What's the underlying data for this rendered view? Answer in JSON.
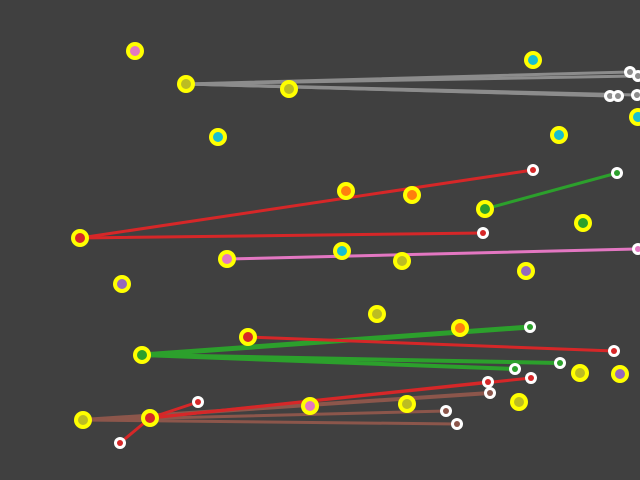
{
  "game": {
    "type": "node-connection-puzzle",
    "background_color": "#404040",
    "ring_color": "#ffff00",
    "connected_dot_fill": "#ffffff",
    "nodes": [
      {
        "id": "n01",
        "color": "#e377c2"
      },
      {
        "id": "n02",
        "color": "#bcbd22"
      },
      {
        "id": "n03",
        "color": "#bcbd22"
      },
      {
        "id": "n04",
        "color": "#17becf"
      },
      {
        "id": "n05",
        "color": "#17becf"
      },
      {
        "id": "n06",
        "color": "#17becf"
      },
      {
        "id": "n07",
        "color": "#17becf"
      },
      {
        "id": "n08",
        "color": "#ff7f0e"
      },
      {
        "id": "n09",
        "color": "#ff7f0e"
      },
      {
        "id": "n10",
        "color": "#2ca02c"
      },
      {
        "id": "n11",
        "color": "#2ca02c"
      },
      {
        "id": "n12",
        "color": "#d62728"
      },
      {
        "id": "n13",
        "color": "#e377c2"
      },
      {
        "id": "n14",
        "color": "#17becf"
      },
      {
        "id": "n15",
        "color": "#bcbd22"
      },
      {
        "id": "n16",
        "color": "#9467bd"
      },
      {
        "id": "n17",
        "color": "#9467bd"
      },
      {
        "id": "n18",
        "color": "#bcbd22"
      },
      {
        "id": "n19",
        "color": "#ff7f0e"
      },
      {
        "id": "n20",
        "color": "#d62728"
      },
      {
        "id": "n21",
        "color": "#2ca02c"
      },
      {
        "id": "n22",
        "color": "#bcbd22"
      },
      {
        "id": "n23",
        "color": "#9467bd"
      },
      {
        "id": "n24",
        "color": "#bcbd22"
      },
      {
        "id": "n25",
        "color": "#d62728"
      },
      {
        "id": "n26",
        "color": "#e377c2"
      },
      {
        "id": "n27",
        "color": "#bcbd22"
      },
      {
        "id": "n28",
        "color": "#bcbd22"
      }
    ],
    "connections": [
      {
        "from": "n02",
        "color": "#8c8c8c",
        "targets": 5
      },
      {
        "from": "n12",
        "color": "#d62728",
        "targets": 2
      },
      {
        "from": "n10",
        "color": "#2ca02c",
        "targets": 1
      },
      {
        "from": "n13",
        "color": "#e377c2",
        "targets": 1
      },
      {
        "from": "n21",
        "color": "#2ca02c",
        "targets": 3
      },
      {
        "from": "n20",
        "color": "#d62728",
        "targets": 1
      },
      {
        "from": "n24",
        "color": "#8c564b",
        "targets": 3
      },
      {
        "from": "n25",
        "color": "#d62728",
        "targets": 4
      }
    ]
  }
}
